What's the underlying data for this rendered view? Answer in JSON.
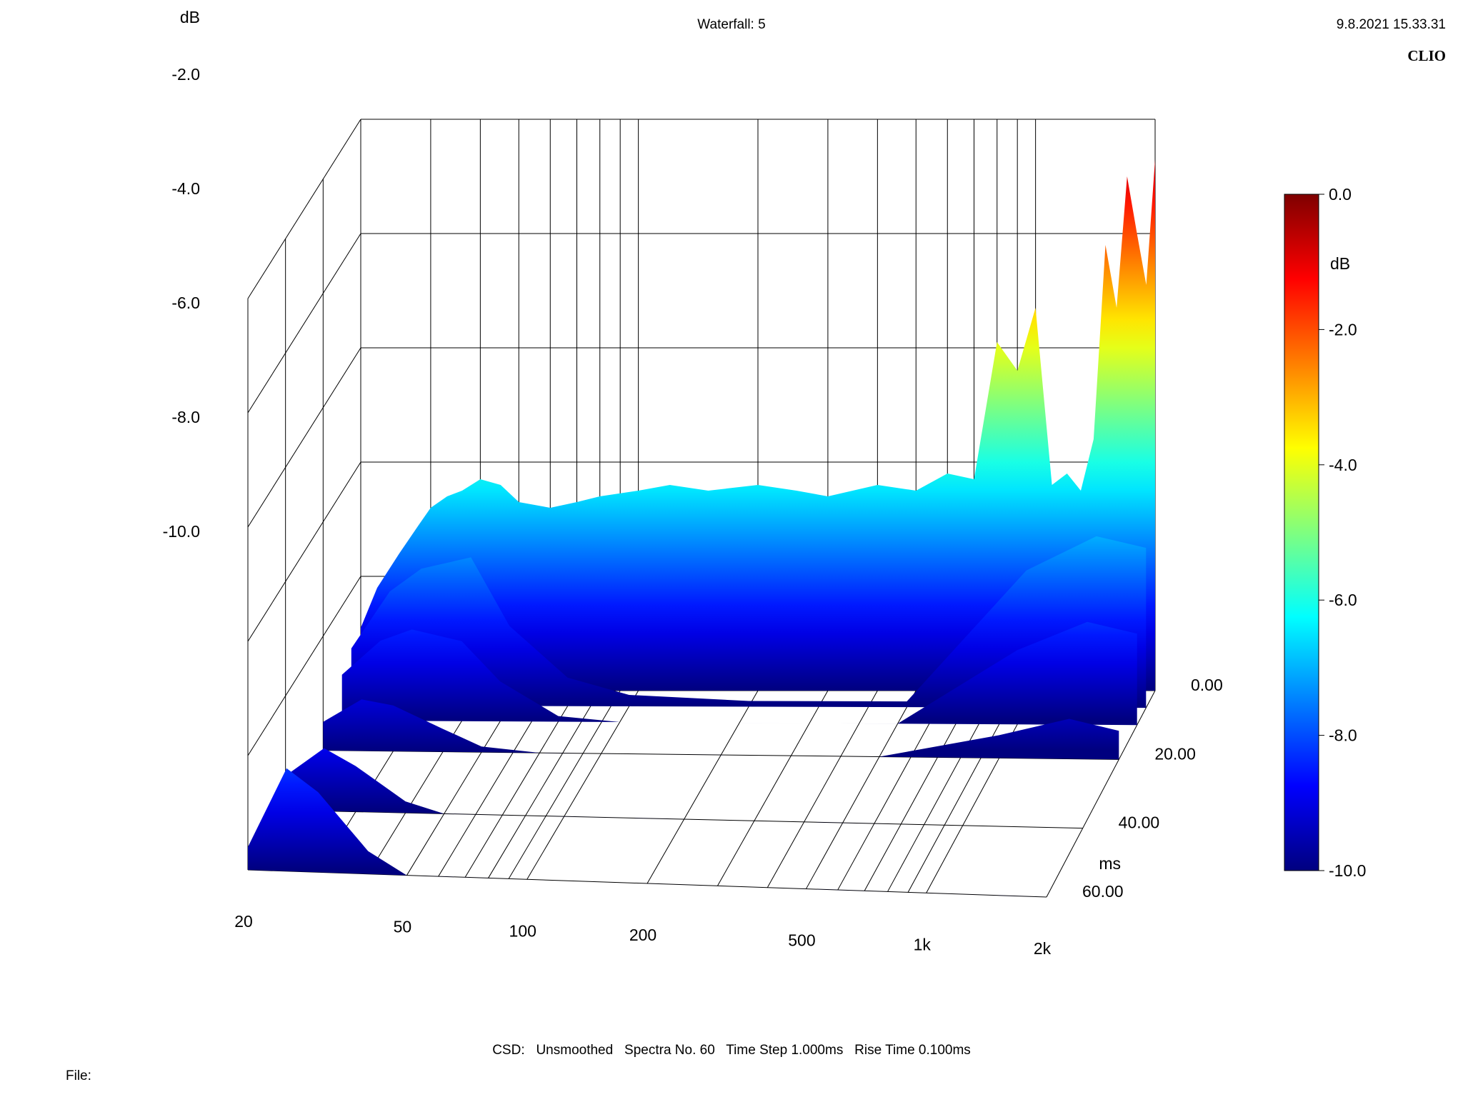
{
  "header": {
    "title": "Waterfall: 5",
    "timestamp": "9.8.2021 15.33.31",
    "brand": "CLIO"
  },
  "footer": {
    "csd_label": "CSD:",
    "smoothing": "Unsmoothed",
    "spectra": "Spectra No. 60",
    "time_step": "Time Step 1.000ms",
    "rise_time": "Rise Time 0.100ms",
    "file_label": "File:"
  },
  "colors": {
    "background": "#ffffff",
    "grid": "#000000",
    "colormap": [
      "#00007f",
      "#0000ff",
      "#007fff",
      "#00ffff",
      "#7fff7f",
      "#ffff00",
      "#ff7f00",
      "#ff0000",
      "#7f0000"
    ]
  },
  "chart_data": {
    "type": "waterfall",
    "title": "Waterfall: 5",
    "x_axis": {
      "scale": "log",
      "range": [
        20,
        2000
      ],
      "tick_values": [
        20,
        50,
        100,
        200,
        500,
        1000,
        2000
      ],
      "tick_labels": [
        "20",
        "50",
        "100",
        "200",
        "500",
        "1k",
        "2k"
      ],
      "label": ""
    },
    "z_axis": {
      "label": "dB",
      "range": [
        -10,
        0
      ],
      "tick_values": [
        0,
        -2,
        -4,
        -6,
        -8,
        -10
      ],
      "tick_labels": [
        "0.0",
        "-2.0",
        "-4.0",
        "-6.0",
        "-8.0",
        "-10.0"
      ]
    },
    "time_axis": {
      "label": "ms",
      "range": [
        0,
        60
      ],
      "tick_values": [
        0,
        20,
        40,
        60
      ],
      "tick_labels": [
        "0.00",
        "20.00",
        "40.00",
        "60.00"
      ]
    },
    "colorbar": {
      "label": "dB",
      "range": [
        -10,
        0
      ],
      "tick_labels": [
        "0.0",
        "-2.0",
        "-4.0",
        "-6.0",
        "-8.0",
        "-10.0"
      ]
    },
    "grid": true,
    "series": [
      {
        "slice_time_ms": 0,
        "frequency_hz": [
          20,
          22,
          25,
          28,
          30,
          33,
          36,
          40,
          45,
          50,
          60,
          70,
          80,
          100,
          120,
          150,
          200,
          250,
          300,
          400,
          500,
          600,
          700,
          800,
          900,
          1000,
          1100,
          1200,
          1300,
          1400,
          1500,
          1600,
          1700,
          1800,
          1900,
          2000
        ],
        "level_db": [
          -8.9,
          -8.2,
          -7.6,
          -7.1,
          -6.8,
          -6.6,
          -6.5,
          -6.3,
          -6.4,
          -6.7,
          -6.8,
          -6.7,
          -6.6,
          -6.5,
          -6.4,
          -6.5,
          -6.4,
          -6.5,
          -6.6,
          -6.4,
          -6.5,
          -6.2,
          -6.3,
          -3.9,
          -4.4,
          -3.3,
          -6.4,
          -6.2,
          -6.5,
          -5.6,
          -2.2,
          -3.3,
          -1.0,
          -2.0,
          -2.9,
          -0.7
        ]
      },
      {
        "slice_time_ms": 5,
        "frequency_hz": [
          20,
          25,
          30,
          40,
          50,
          70,
          100,
          200,
          500,
          1000,
          1500,
          2000
        ],
        "level_db": [
          -9.0,
          -8.0,
          -7.6,
          -7.4,
          -8.6,
          -9.5,
          -9.8,
          -9.9,
          -9.9,
          -7.6,
          -7.0,
          -7.2
        ]
      },
      {
        "slice_time_ms": 10,
        "frequency_hz": [
          20,
          25,
          30,
          40,
          50,
          70,
          100,
          200,
          500,
          1000,
          1500,
          2000
        ],
        "level_db": [
          -9.2,
          -8.6,
          -8.4,
          -8.6,
          -9.3,
          -9.9,
          -10.0,
          -10.0,
          -10.0,
          -8.7,
          -8.2,
          -8.4
        ]
      },
      {
        "slice_time_ms": 20,
        "frequency_hz": [
          20,
          25,
          30,
          40,
          50,
          70,
          100,
          200,
          500,
          1000,
          1500,
          2000
        ],
        "level_db": [
          -9.5,
          -9.1,
          -9.2,
          -9.6,
          -9.9,
          -10.0,
          -10.0,
          -10.0,
          -10.0,
          -9.6,
          -9.3,
          -9.5
        ]
      },
      {
        "slice_time_ms": 40,
        "frequency_hz": [
          20,
          25,
          30,
          40,
          50,
          70,
          100,
          200,
          500,
          1000,
          1500,
          2000
        ],
        "level_db": [
          -9.4,
          -8.9,
          -9.2,
          -9.8,
          -10.0,
          -10.0,
          -10.0,
          -10.0,
          -10.0,
          -10.0,
          -10.0,
          -10.0
        ]
      },
      {
        "slice_time_ms": 60,
        "frequency_hz": [
          20,
          25,
          30,
          40,
          50,
          70,
          100,
          200,
          500,
          1000,
          1500,
          2000
        ],
        "level_db": [
          -9.6,
          -8.2,
          -8.6,
          -9.6,
          -10.0,
          -10.0,
          -10.0,
          -10.0,
          -10.0,
          -10.0,
          -10.0,
          -10.0
        ]
      }
    ]
  }
}
